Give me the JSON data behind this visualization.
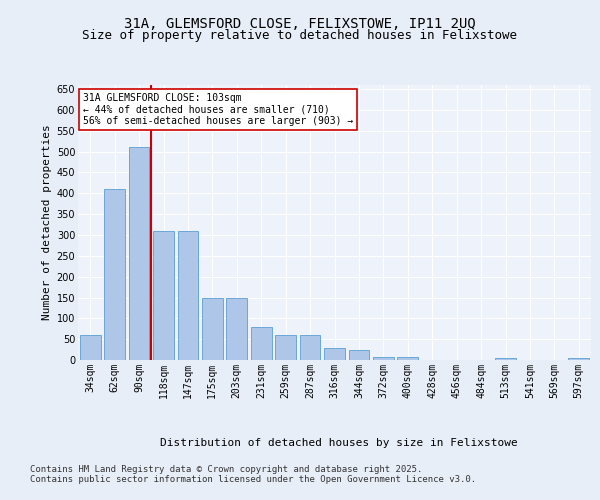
{
  "title": "31A, GLEMSFORD CLOSE, FELIXSTOWE, IP11 2UQ",
  "subtitle": "Size of property relative to detached houses in Felixstowe",
  "xlabel": "Distribution of detached houses by size in Felixstowe",
  "ylabel": "Number of detached properties",
  "categories": [
    "34sqm",
    "62sqm",
    "90sqm",
    "118sqm",
    "147sqm",
    "175sqm",
    "203sqm",
    "231sqm",
    "259sqm",
    "287sqm",
    "316sqm",
    "344sqm",
    "372sqm",
    "400sqm",
    "428sqm",
    "456sqm",
    "484sqm",
    "513sqm",
    "541sqm",
    "569sqm",
    "597sqm"
  ],
  "values": [
    60,
    410,
    510,
    310,
    310,
    148,
    148,
    80,
    60,
    60,
    30,
    25,
    8,
    8,
    0,
    0,
    0,
    4,
    0,
    0,
    4
  ],
  "bar_color": "#aec6e8",
  "bar_edge_color": "#5a9fd4",
  "vline_color": "#cc0000",
  "annotation_text": "31A GLEMSFORD CLOSE: 103sqm\n← 44% of detached houses are smaller (710)\n56% of semi-detached houses are larger (903) →",
  "annotation_box_color": "#ffffff",
  "annotation_box_edgecolor": "#cc0000",
  "footer_text": "Contains HM Land Registry data © Crown copyright and database right 2025.\nContains public sector information licensed under the Open Government Licence v3.0.",
  "ylim": [
    0,
    660
  ],
  "yticks": [
    0,
    50,
    100,
    150,
    200,
    250,
    300,
    350,
    400,
    450,
    500,
    550,
    600,
    650
  ],
  "bg_color": "#e8eef8",
  "plot_bg_color": "#eef2fb",
  "title_fontsize": 10,
  "subtitle_fontsize": 9,
  "axis_label_fontsize": 8,
  "tick_fontsize": 7,
  "annotation_fontsize": 7,
  "footer_fontsize": 6.5
}
